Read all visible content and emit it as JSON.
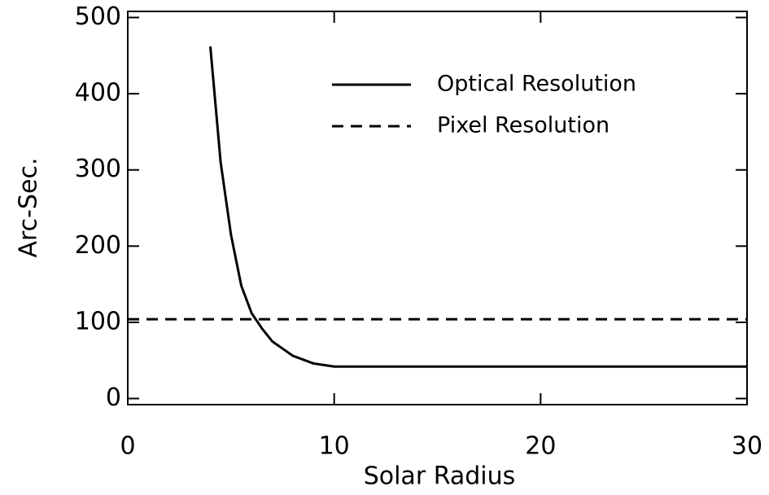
{
  "chart_data": {
    "type": "line",
    "xlabel": "Solar Radius",
    "ylabel": "Arc-Sec.",
    "xlim": [
      0,
      30
    ],
    "ylim": [
      -8,
      508
    ],
    "xticks": [
      0,
      10,
      20,
      30
    ],
    "yticks": [
      0,
      100,
      200,
      300,
      400,
      500
    ],
    "series": [
      {
        "name": "Optical Resolution",
        "color": "#000000",
        "line_style": "solid",
        "x": [
          4,
          4.5,
          5,
          5.5,
          6,
          6.5,
          7,
          8,
          9,
          10,
          15,
          20,
          25,
          30
        ],
        "values": [
          462,
          310,
          215,
          148,
          112,
          92,
          75,
          56,
          46,
          42,
          42,
          42,
          42,
          42
        ]
      },
      {
        "name": "Pixel Resolution",
        "color": "#000000",
        "line_style": "dashed",
        "x": [
          0,
          30
        ],
        "values": [
          104,
          104
        ]
      }
    ]
  }
}
